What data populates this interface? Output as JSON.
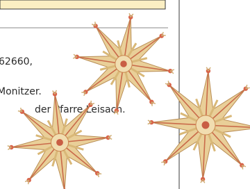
{
  "text_lines": [
    "62660,",
    "Monitzer.",
    "der Pfarre Leisach."
  ]
}
